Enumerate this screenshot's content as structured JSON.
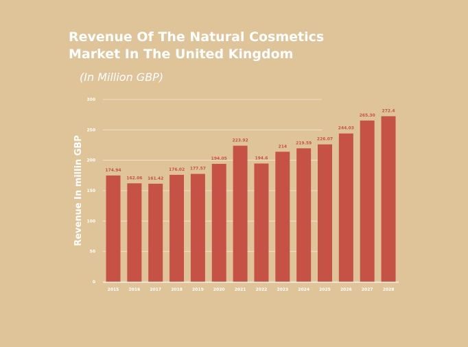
{
  "chart_data": {
    "type": "bar",
    "title_lines": [
      "Revenue Of The Natural Cosmetics",
      "Market In The United Kingdom"
    ],
    "subtitle": "(In Million GBP)",
    "xlabel": "",
    "ylabel": "Revenue In millin GBP",
    "ylim": [
      0,
      300
    ],
    "yticks": [
      "0",
      "50",
      "100",
      "150",
      "200",
      "250",
      "300"
    ],
    "categories": [
      "2015",
      "2016",
      "2017",
      "2018",
      "2019",
      "2020",
      "2021",
      "2022",
      "2023",
      "2024",
      "2025",
      "2026",
      "2027",
      "2028"
    ],
    "values": [
      174.94,
      162.06,
      161.42,
      176.02,
      177.57,
      194.05,
      223.92,
      194.6,
      214,
      219.59,
      226.07,
      244.03,
      265.3,
      272.4
    ],
    "labels": [
      "174.94",
      "162.06",
      "161.42",
      "176.02",
      "177.57",
      "194.05",
      "223.92",
      "194.6",
      "214",
      "219.59",
      "226.07",
      "244.03",
      "265.30",
      "272.4"
    ],
    "grid": true,
    "bar_color": "#c65246",
    "label_color": "#c65246"
  }
}
